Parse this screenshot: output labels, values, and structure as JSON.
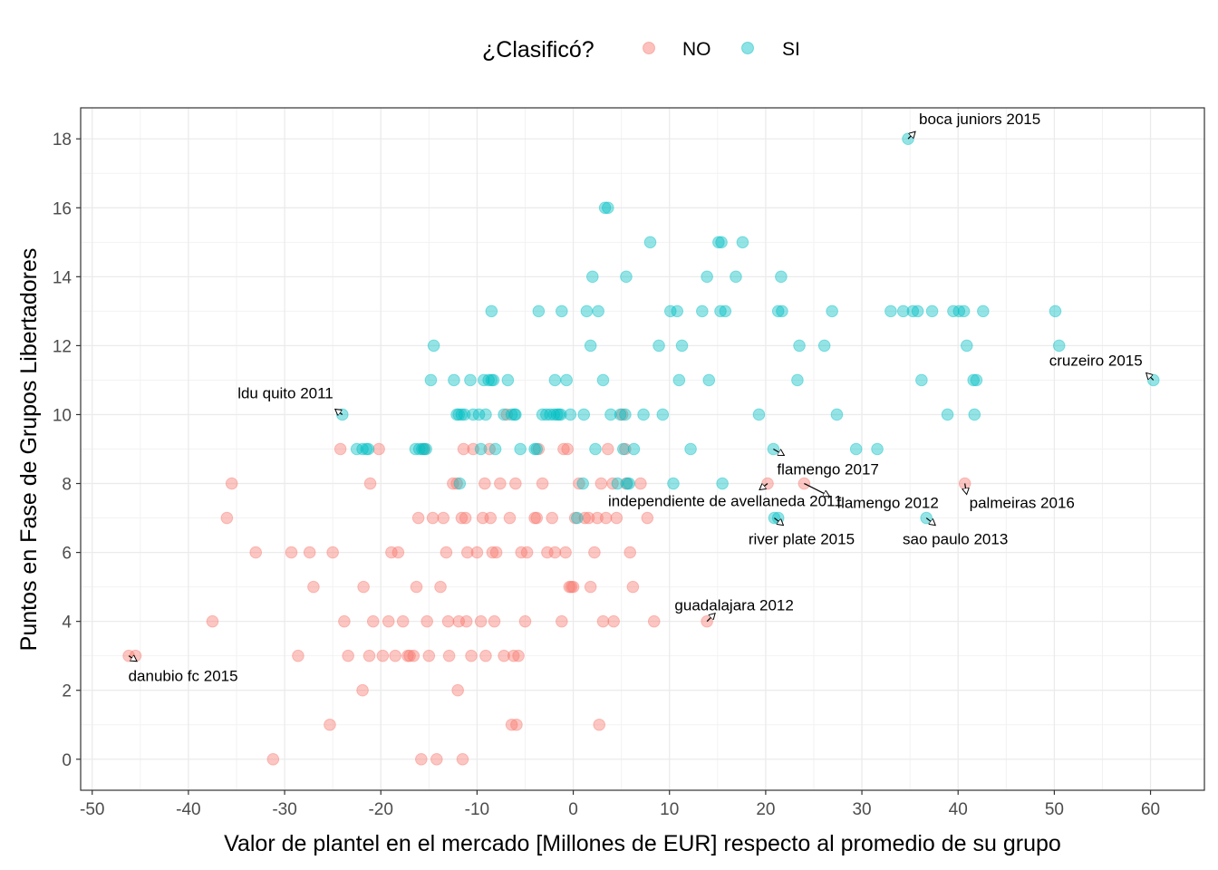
{
  "chart_data": {
    "type": "scatter",
    "xlabel": "Valor de plantel en el mercado [Millones de EUR] respecto al promedio de su grupo",
    "ylabel": "Puntos en Fase de Grupos Libertadores",
    "xlim": [
      -51.2,
      65.6
    ],
    "ylim": [
      -0.9,
      18.9
    ],
    "xticks": [
      -50,
      -40,
      -30,
      -20,
      -10,
      0,
      10,
      20,
      30,
      40,
      50,
      60
    ],
    "yticks": [
      0,
      2,
      4,
      6,
      8,
      10,
      12,
      14,
      16,
      18
    ],
    "grid": true,
    "legend": {
      "title": "¿Clasificó?",
      "position": "top",
      "entries": [
        {
          "label": "NO",
          "color": "#F8766D"
        },
        {
          "label": "SI",
          "color": "#00BFC4"
        }
      ]
    },
    "series": [
      {
        "name": "NO",
        "color": "#F8766D",
        "points": [
          [
            -46.2,
            3
          ],
          [
            -45.5,
            3
          ],
          [
            -37.5,
            4
          ],
          [
            -36,
            7
          ],
          [
            -35.5,
            8
          ],
          [
            -33,
            6
          ],
          [
            -31.2,
            0
          ],
          [
            -29.3,
            6
          ],
          [
            -28.6,
            3
          ],
          [
            -27.4,
            6
          ],
          [
            -27,
            5
          ],
          [
            -25.3,
            1
          ],
          [
            -25,
            6
          ],
          [
            -24.2,
            9
          ],
          [
            -23.8,
            4
          ],
          [
            -23.4,
            3
          ],
          [
            -21.8,
            5
          ],
          [
            -21.9,
            2
          ],
          [
            -21.2,
            3
          ],
          [
            -21.1,
            8
          ],
          [
            -20.8,
            4
          ],
          [
            -20.2,
            9
          ],
          [
            -19.8,
            3
          ],
          [
            -19.2,
            4
          ],
          [
            -18.9,
            6
          ],
          [
            -18.5,
            3
          ],
          [
            -18.2,
            6
          ],
          [
            -17.7,
            4
          ],
          [
            -17.2,
            3
          ],
          [
            -17,
            3
          ],
          [
            -16.6,
            3
          ],
          [
            -16.3,
            5
          ],
          [
            -16.1,
            7
          ],
          [
            -15.8,
            0
          ],
          [
            -15.5,
            9
          ],
          [
            -15.2,
            4
          ],
          [
            -15,
            3
          ],
          [
            -14.6,
            7
          ],
          [
            -14.2,
            0
          ],
          [
            -13.8,
            5
          ],
          [
            -13.5,
            7
          ],
          [
            -13.2,
            6
          ],
          [
            -13,
            4
          ],
          [
            -12.9,
            3
          ],
          [
            -12.5,
            8
          ],
          [
            -12.1,
            8
          ],
          [
            -12,
            2
          ],
          [
            -11.9,
            4
          ],
          [
            -11.6,
            7
          ],
          [
            -11.5,
            0
          ],
          [
            -11.4,
            9
          ],
          [
            -11.2,
            7
          ],
          [
            -11.1,
            4
          ],
          [
            -11,
            6
          ],
          [
            -10.6,
            3
          ],
          [
            -10.4,
            9
          ],
          [
            -10,
            6
          ],
          [
            -9.6,
            4
          ],
          [
            -9.4,
            7
          ],
          [
            -9.2,
            8
          ],
          [
            -9.1,
            3
          ],
          [
            -8.7,
            9
          ],
          [
            -8.6,
            7
          ],
          [
            -8.4,
            6
          ],
          [
            -8.2,
            4
          ],
          [
            -8,
            6
          ],
          [
            -7.6,
            8
          ],
          [
            -7.2,
            3
          ],
          [
            -6.9,
            10
          ],
          [
            -6.6,
            7
          ],
          [
            -6.4,
            1
          ],
          [
            -6.2,
            3
          ],
          [
            -6,
            8
          ],
          [
            -5.9,
            1
          ],
          [
            -5.7,
            3
          ],
          [
            -5.4,
            6
          ],
          [
            -5,
            4
          ],
          [
            -4.8,
            6
          ],
          [
            -4,
            7
          ],
          [
            -3.8,
            7
          ],
          [
            -3.6,
            9
          ],
          [
            -3.2,
            8
          ],
          [
            -2.7,
            6
          ],
          [
            -2.2,
            7
          ],
          [
            -1.9,
            6
          ],
          [
            -1.2,
            4
          ],
          [
            -1,
            9
          ],
          [
            -0.8,
            6
          ],
          [
            -0.6,
            9
          ],
          [
            -0.4,
            5
          ],
          [
            -0.2,
            5
          ],
          [
            0,
            5
          ],
          [
            0.2,
            7
          ],
          [
            0.6,
            8
          ],
          [
            1.2,
            7
          ],
          [
            1.6,
            7
          ],
          [
            1.8,
            5
          ],
          [
            2.2,
            6
          ],
          [
            2.5,
            7
          ],
          [
            2.7,
            1
          ],
          [
            2.9,
            8
          ],
          [
            3.1,
            4
          ],
          [
            3.4,
            7
          ],
          [
            3.6,
            9
          ],
          [
            4.1,
            8
          ],
          [
            4.2,
            4
          ],
          [
            4.5,
            7
          ],
          [
            5.1,
            10
          ],
          [
            5.4,
            9
          ],
          [
            5.5,
            8
          ],
          [
            5.9,
            6
          ],
          [
            6.2,
            5
          ],
          [
            7,
            8
          ],
          [
            7.7,
            7
          ],
          [
            8.4,
            4
          ],
          [
            13.9,
            4
          ],
          [
            20.2,
            8
          ],
          [
            24,
            8
          ],
          [
            40.7,
            8
          ]
        ]
      },
      {
        "name": "SI",
        "color": "#00BFC4",
        "points": [
          [
            -24,
            10
          ],
          [
            -22.5,
            9
          ],
          [
            -21.9,
            9
          ],
          [
            -21.5,
            9
          ],
          [
            -21.3,
            9
          ],
          [
            -14.8,
            11
          ],
          [
            -14.5,
            12
          ],
          [
            -16.4,
            9
          ],
          [
            -16,
            9
          ],
          [
            -15.7,
            9
          ],
          [
            -15.5,
            9
          ],
          [
            -15.3,
            9
          ],
          [
            -12.4,
            11
          ],
          [
            -11.8,
            8
          ],
          [
            -12.1,
            10
          ],
          [
            -11.9,
            10
          ],
          [
            -11.6,
            10
          ],
          [
            -11.3,
            10
          ],
          [
            -10.7,
            11
          ],
          [
            -10.4,
            10
          ],
          [
            -9.8,
            10
          ],
          [
            -9.3,
            11
          ],
          [
            -9.6,
            9
          ],
          [
            -9.1,
            10
          ],
          [
            -8.8,
            11
          ],
          [
            -8.5,
            11
          ],
          [
            -8.3,
            11
          ],
          [
            -8.5,
            13
          ],
          [
            -8.1,
            9
          ],
          [
            -7.2,
            10
          ],
          [
            -6.8,
            11
          ],
          [
            -6.1,
            10
          ],
          [
            -6.4,
            10
          ],
          [
            -6,
            10
          ],
          [
            -5.5,
            9
          ],
          [
            -4,
            9
          ],
          [
            -3.8,
            9
          ],
          [
            -3.6,
            13
          ],
          [
            -3.2,
            10
          ],
          [
            -2.8,
            10
          ],
          [
            -2.4,
            10
          ],
          [
            -2,
            10
          ],
          [
            -1.9,
            11
          ],
          [
            -1.7,
            10
          ],
          [
            -1.5,
            10
          ],
          [
            -1.3,
            10
          ],
          [
            -1.2,
            13
          ],
          [
            -0.7,
            11
          ],
          [
            -0.3,
            10
          ],
          [
            0.4,
            7
          ],
          [
            1,
            8
          ],
          [
            1.1,
            10
          ],
          [
            1.4,
            13
          ],
          [
            1.8,
            12
          ],
          [
            2,
            14
          ],
          [
            2.3,
            9
          ],
          [
            2.6,
            13
          ],
          [
            3.1,
            11
          ],
          [
            3.3,
            16
          ],
          [
            3.6,
            16
          ],
          [
            3.9,
            10
          ],
          [
            4.6,
            8
          ],
          [
            4.9,
            10
          ],
          [
            5.2,
            9
          ],
          [
            5.4,
            10
          ],
          [
            5.5,
            14
          ],
          [
            5.6,
            8
          ],
          [
            5.8,
            8
          ],
          [
            6.3,
            9
          ],
          [
            7.3,
            10
          ],
          [
            8,
            15
          ],
          [
            8.9,
            12
          ],
          [
            9.3,
            10
          ],
          [
            10.1,
            13
          ],
          [
            10.4,
            8
          ],
          [
            10.8,
            13
          ],
          [
            11,
            11
          ],
          [
            11.3,
            12
          ],
          [
            12.2,
            9
          ],
          [
            13.4,
            13
          ],
          [
            13.9,
            14
          ],
          [
            14.1,
            11
          ],
          [
            15.1,
            15
          ],
          [
            15.4,
            15
          ],
          [
            15.5,
            8
          ],
          [
            15.3,
            13
          ],
          [
            15.8,
            13
          ],
          [
            16.9,
            14
          ],
          [
            17.6,
            15
          ],
          [
            19.3,
            10
          ],
          [
            20.8,
            9
          ],
          [
            21.3,
            13
          ],
          [
            21.7,
            13
          ],
          [
            21.6,
            14
          ],
          [
            20.9,
            7
          ],
          [
            21.3,
            7
          ],
          [
            23.3,
            11
          ],
          [
            23.5,
            12
          ],
          [
            26.1,
            12
          ],
          [
            26.9,
            13
          ],
          [
            27.4,
            10
          ],
          [
            29.4,
            9
          ],
          [
            31.6,
            9
          ],
          [
            33,
            13
          ],
          [
            34.3,
            13
          ],
          [
            34.8,
            18
          ],
          [
            35.3,
            13
          ],
          [
            35.8,
            13
          ],
          [
            36.2,
            11
          ],
          [
            36.7,
            7
          ],
          [
            37.3,
            13
          ],
          [
            38.9,
            10
          ],
          [
            39.5,
            13
          ],
          [
            40.1,
            13
          ],
          [
            40.9,
            12
          ],
          [
            40.6,
            13
          ],
          [
            41.6,
            11
          ],
          [
            41.7,
            10
          ],
          [
            41.9,
            11
          ],
          [
            42.6,
            13
          ],
          [
            50.1,
            13
          ],
          [
            50.5,
            12
          ],
          [
            60.3,
            11
          ]
        ]
      }
    ],
    "annotations": [
      {
        "text": "boca juniors 2015",
        "x": 34.8,
        "y": 18
      },
      {
        "text": "cruzeiro 2015",
        "x": 60.3,
        "y": 11
      },
      {
        "text": "ldu quito 2011",
        "x": -24,
        "y": 10
      },
      {
        "text": "flamengo 2017",
        "x": 20.8,
        "y": 9
      },
      {
        "text": "independiente de avellaneda 2011",
        "x": 20.2,
        "y": 8
      },
      {
        "text": "flamengo 2012",
        "x": 24,
        "y": 8
      },
      {
        "text": "palmeiras 2016",
        "x": 40.7,
        "y": 8
      },
      {
        "text": "river plate 2015",
        "x": 20.9,
        "y": 7
      },
      {
        "text": "sao paulo 2013",
        "x": 36.7,
        "y": 7
      },
      {
        "text": "guadalajara 2012",
        "x": 13.9,
        "y": 4
      },
      {
        "text": "danubio fc 2015",
        "x": -46.2,
        "y": 3
      }
    ]
  }
}
